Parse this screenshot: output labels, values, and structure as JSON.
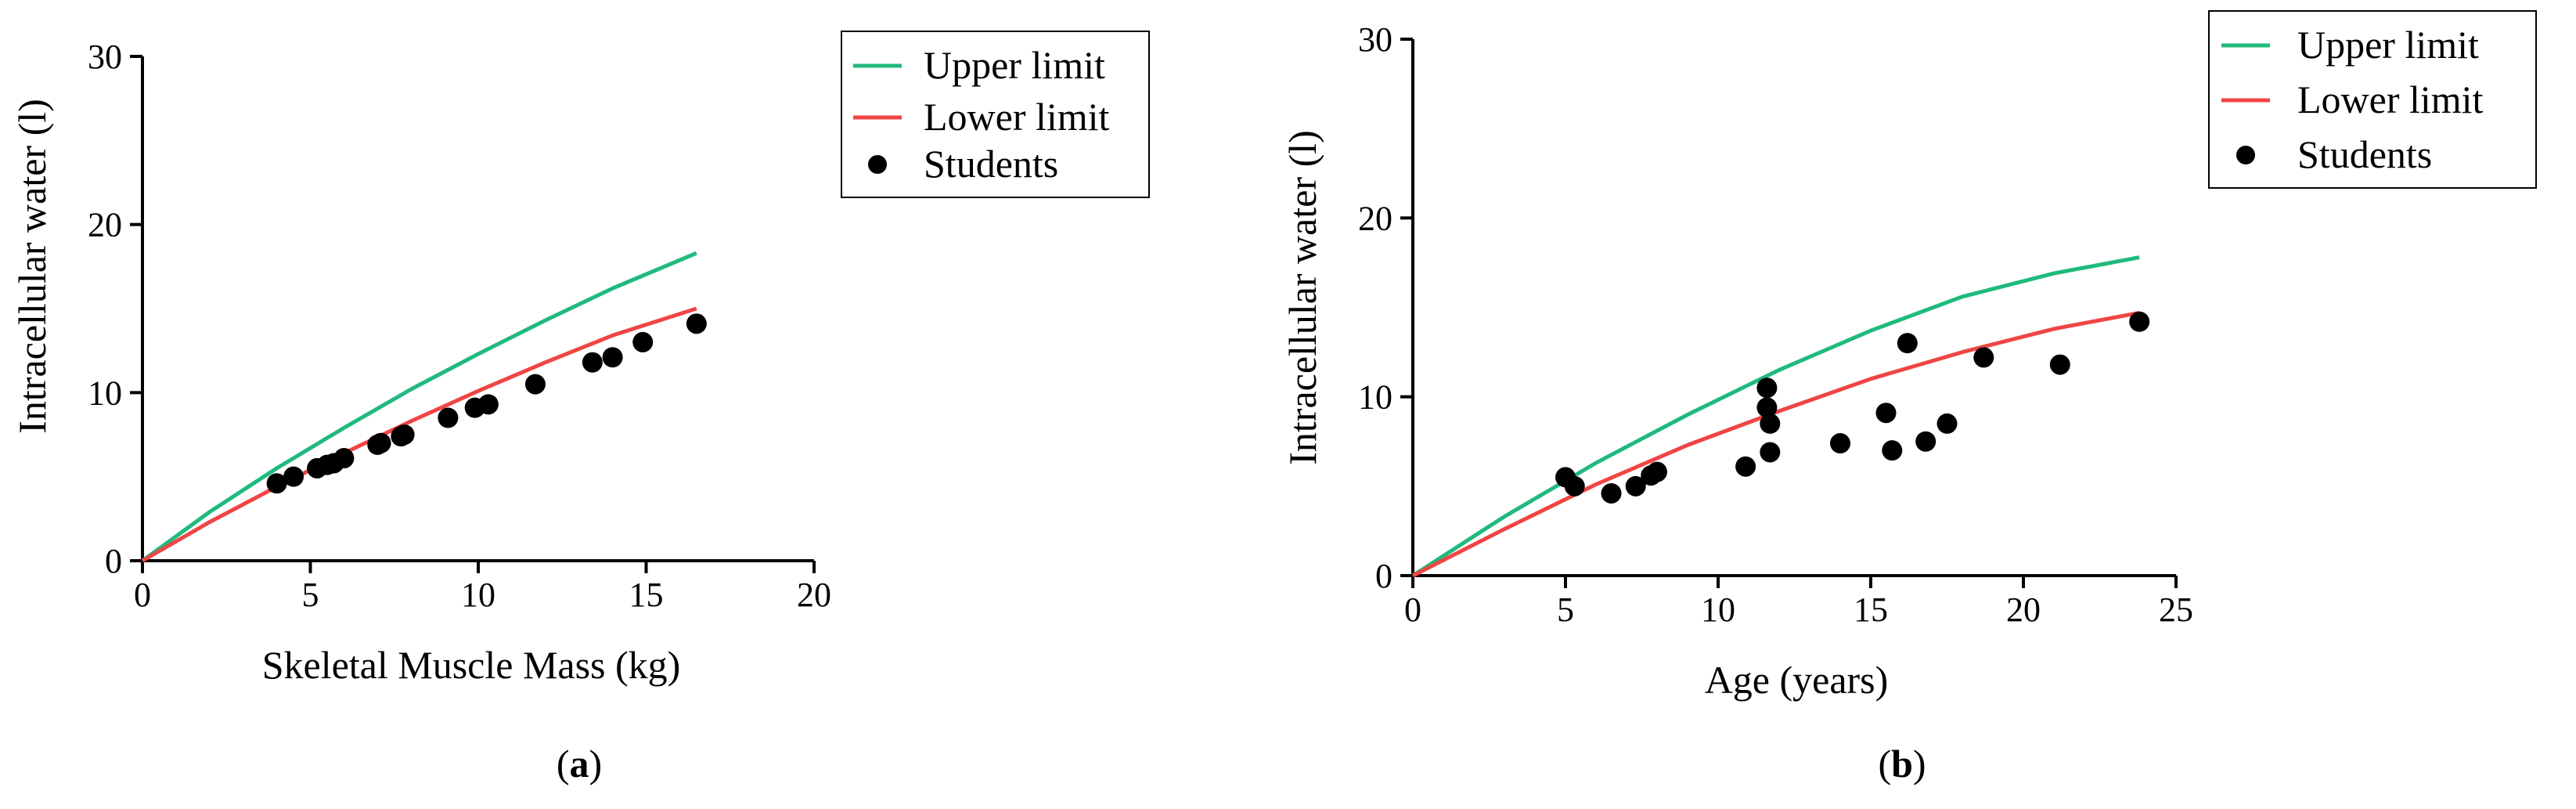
{
  "chart_data": [
    {
      "type": "scatter",
      "panel_label": {
        "open": "(",
        "letter": "a",
        "close": ")"
      },
      "xlabel": "Skeletal Muscle Mass (kg)",
      "ylabel": "Intracellular water (l)",
      "xlim": [
        0,
        20
      ],
      "ylim": [
        0,
        30
      ],
      "xticks": [
        0,
        5,
        10,
        15,
        20
      ],
      "yticks": [
        0,
        10,
        20,
        30
      ],
      "grid": false,
      "legend": "top-right, outside plot, boxed",
      "series": [
        {
          "name": "Upper limit",
          "kind": "line",
          "color": "#1fba7c",
          "x": [
            0,
            2,
            4,
            6,
            8,
            10,
            12,
            14,
            16.5
          ],
          "y": [
            0,
            2.9,
            5.5,
            7.9,
            10.2,
            12.3,
            14.3,
            16.2,
            18.3
          ]
        },
        {
          "name": "Lower limit",
          "kind": "line",
          "color": "#f04545",
          "x": [
            0,
            2,
            4,
            6,
            8,
            10,
            12,
            14,
            16.5
          ],
          "y": [
            0,
            2.3,
            4.4,
            6.4,
            8.3,
            10.1,
            11.8,
            13.4,
            15.0
          ]
        },
        {
          "name": "Students",
          "kind": "scatter",
          "color": "#000000",
          "x": [
            4.0,
            4.5,
            5.2,
            5.5,
            5.7,
            6.0,
            7.0,
            7.1,
            7.7,
            7.8,
            9.1,
            9.9,
            10.3,
            11.7,
            13.4,
            14.0,
            14.9,
            16.5
          ],
          "y": [
            4.6,
            5.0,
            5.5,
            5.7,
            5.8,
            6.1,
            6.9,
            7.0,
            7.4,
            7.5,
            8.5,
            9.1,
            9.3,
            10.5,
            11.8,
            12.1,
            13.0,
            14.1
          ]
        }
      ]
    },
    {
      "type": "scatter",
      "panel_label": {
        "open": "(",
        "letter": "b",
        "close": ")"
      },
      "xlabel": "Age (years)",
      "ylabel": "Intracellular water (l)",
      "xlim": [
        0,
        25
      ],
      "ylim": [
        0,
        30
      ],
      "xticks": [
        0,
        5,
        10,
        15,
        20,
        25
      ],
      "yticks": [
        0,
        10,
        20,
        30
      ],
      "grid": false,
      "legend": "top-right, outside plot, boxed",
      "series": [
        {
          "name": "Upper limit",
          "kind": "line",
          "color": "#1fba7c",
          "x": [
            0,
            3,
            6,
            9,
            12,
            15,
            18,
            21,
            23.8
          ],
          "y": [
            0,
            3.3,
            6.3,
            9.0,
            11.5,
            13.7,
            15.6,
            16.9,
            17.8
          ]
        },
        {
          "name": "Lower limit",
          "kind": "line",
          "color": "#f04545",
          "x": [
            0,
            3,
            6,
            9,
            12,
            15,
            18,
            21,
            23.8
          ],
          "y": [
            0,
            2.6,
            5.1,
            7.3,
            9.2,
            11.0,
            12.5,
            13.8,
            14.7
          ]
        },
        {
          "name": "Students",
          "kind": "scatter",
          "color": "#000000",
          "x": [
            5.0,
            5.3,
            6.5,
            7.3,
            7.8,
            8.0,
            10.9,
            11.6,
            11.6,
            11.7,
            11.7,
            14.0,
            15.5,
            15.7,
            16.2,
            16.8,
            17.5,
            18.7,
            21.2,
            23.8
          ],
          "y": [
            5.5,
            5.0,
            4.6,
            5.0,
            5.6,
            5.8,
            6.1,
            10.5,
            9.4,
            8.5,
            6.9,
            7.4,
            9.1,
            7.0,
            13.0,
            7.5,
            8.5,
            12.2,
            11.8,
            14.2
          ]
        }
      ]
    }
  ]
}
